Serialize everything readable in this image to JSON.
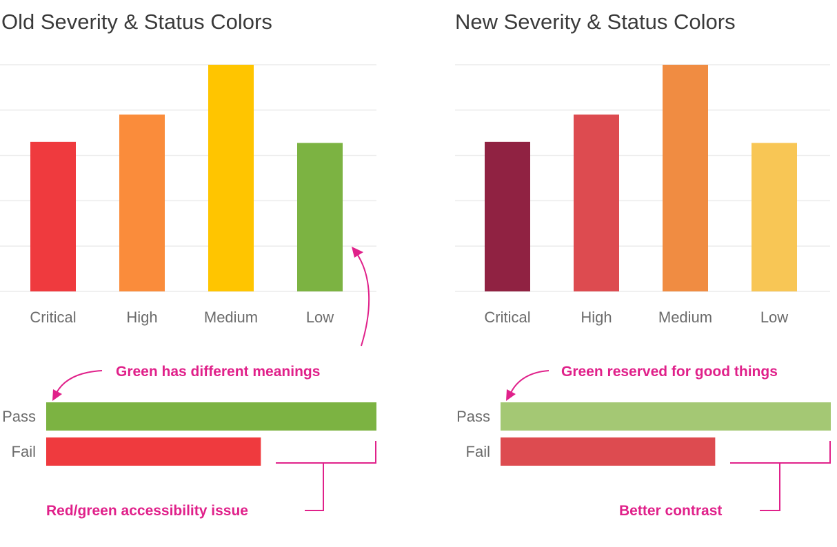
{
  "chart_data": [
    {
      "type": "bar",
      "title": "Old Severity & Status Colors",
      "categories": [
        "Critical",
        "High",
        "Medium",
        "Low"
      ],
      "values": [
        66,
        78,
        100,
        65.5
      ],
      "colors": [
        "#ef3a3e",
        "#fa8c3b",
        "#ffc500",
        "#7cb342"
      ],
      "ylim": [
        0,
        100
      ],
      "grid": true,
      "status_bars": {
        "categories": [
          "Pass",
          "Fail"
        ],
        "values": [
          100,
          65
        ],
        "colors": [
          "#7cb342",
          "#ef3a3e"
        ]
      },
      "annotations": [
        "Green has different meanings",
        "Red/green accessibility issue"
      ]
    },
    {
      "type": "bar",
      "title": "New Severity & Status Colors",
      "categories": [
        "Critical",
        "High",
        "Medium",
        "Low"
      ],
      "values": [
        66,
        78,
        100,
        65.5
      ],
      "colors": [
        "#902242",
        "#dd4b50",
        "#f08c42",
        "#f8c655"
      ],
      "ylim": [
        0,
        100
      ],
      "grid": true,
      "status_bars": {
        "categories": [
          "Pass",
          "Fail"
        ],
        "values": [
          100,
          65
        ],
        "colors": [
          "#a4c874",
          "#dd4b50"
        ]
      },
      "annotations": [
        "Green reserved for good things",
        "Better contrast"
      ]
    }
  ],
  "annotation_color": "#e0218a"
}
